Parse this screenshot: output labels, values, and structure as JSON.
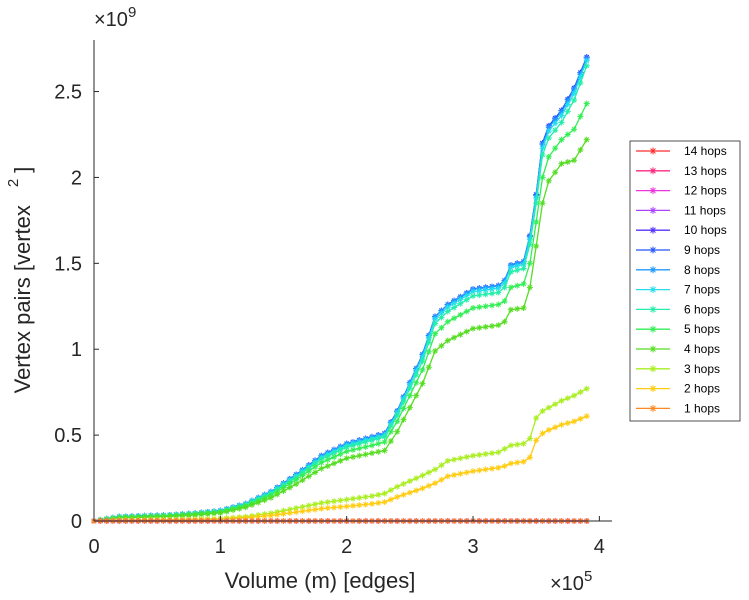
{
  "chart_data": {
    "type": "line",
    "title": "",
    "xlabel": "Volume (m) [edges]",
    "ylabel": "Vertex pairs [vertex",
    "ylabel_superscript": "2",
    "ylabel_suffix": "]",
    "xlim": [
      0,
      410000
    ],
    "ylim": [
      0,
      2800000000
    ],
    "x_ticks": [
      0,
      100000,
      200000,
      300000,
      400000
    ],
    "x_tick_labels": [
      "0",
      "1",
      "2",
      "3",
      "4"
    ],
    "y_ticks": [
      0,
      500000000,
      1000000000,
      1500000000,
      2000000000,
      2500000000
    ],
    "y_tick_labels": [
      "0",
      "0.5",
      "1",
      "1.5",
      "2",
      "2.5"
    ],
    "x_multiplier": "×10",
    "x_multiplier_exp": "5",
    "y_multiplier": "×10",
    "y_multiplier_exp": "9",
    "grid": false,
    "legend_position": "outside-right",
    "x": [
      0,
      20000,
      40000,
      60000,
      80000,
      100000,
      120000,
      140000,
      160000,
      180000,
      200000,
      220000,
      230000,
      240000,
      260000,
      270000,
      280000,
      300000,
      320000,
      325000,
      330000,
      340000,
      345000,
      350000,
      355000,
      360000,
      370000,
      380000,
      390000
    ],
    "series": [
      {
        "name": "14 hops",
        "color": "#ff2a2a",
        "values": [
          0,
          0,
          0,
          0,
          0,
          0,
          0,
          0,
          0,
          0,
          0,
          0,
          0,
          0,
          0,
          0,
          0,
          0,
          0,
          0,
          0,
          0,
          0,
          0,
          0,
          0,
          0,
          0,
          0
        ]
      },
      {
        "name": "13 hops",
        "color": "#ff2a7f",
        "values": [
          0,
          0,
          0,
          0,
          0,
          0,
          0,
          0,
          0,
          0,
          0,
          0,
          0,
          0,
          0,
          0,
          0,
          0,
          0,
          0,
          0,
          0,
          0,
          0,
          0,
          0,
          0,
          0,
          0
        ]
      },
      {
        "name": "12 hops",
        "color": "#ee33dd",
        "values": [
          0,
          0,
          0,
          0,
          0,
          0,
          0,
          0,
          0,
          0,
          0,
          0,
          0,
          0,
          0,
          0,
          0,
          0,
          0,
          0,
          0,
          0,
          0,
          0,
          0,
          0,
          0,
          0,
          0
        ]
      },
      {
        "name": "11 hops",
        "color": "#aa44ff",
        "values": [
          0,
          0,
          0,
          0,
          0,
          0,
          0,
          0,
          0,
          0,
          0,
          0,
          0,
          0,
          0,
          0,
          0,
          0,
          0,
          0,
          0,
          0,
          0,
          0,
          0,
          0,
          0,
          0,
          0
        ]
      },
      {
        "name": "10 hops",
        "color": "#5533ff",
        "values": [
          0,
          25000000,
          30000000,
          35000000,
          45000000,
          60000000,
          100000000,
          170000000,
          270000000,
          380000000,
          450000000,
          490000000,
          510000000,
          640000000,
          970000000,
          1190000000,
          1260000000,
          1350000000,
          1370000000,
          1400000000,
          1490000000,
          1510000000,
          1660000000,
          1900000000,
          2200000000,
          2300000000,
          2390000000,
          2520000000,
          2700000000
        ]
      },
      {
        "name": "9 hops",
        "color": "#2255ff",
        "values": [
          0,
          25000000,
          30000000,
          35000000,
          45000000,
          60000000,
          100000000,
          170000000,
          270000000,
          380000000,
          450000000,
          490000000,
          510000000,
          640000000,
          970000000,
          1190000000,
          1260000000,
          1350000000,
          1370000000,
          1400000000,
          1490000000,
          1510000000,
          1660000000,
          1900000000,
          2200000000,
          2300000000,
          2390000000,
          2520000000,
          2700000000
        ]
      },
      {
        "name": "8 hops",
        "color": "#2299ff",
        "values": [
          0,
          25000000,
          30000000,
          35000000,
          45000000,
          60000000,
          100000000,
          170000000,
          268000000,
          378000000,
          448000000,
          488000000,
          508000000,
          638000000,
          968000000,
          1188000000,
          1258000000,
          1348000000,
          1368000000,
          1398000000,
          1488000000,
          1508000000,
          1655000000,
          1895000000,
          2190000000,
          2290000000,
          2380000000,
          2510000000,
          2690000000
        ]
      },
      {
        "name": "7 hops",
        "color": "#22ddee",
        "values": [
          0,
          24000000,
          29000000,
          34000000,
          44000000,
          58000000,
          98000000,
          165000000,
          262000000,
          370000000,
          440000000,
          480000000,
          500000000,
          630000000,
          955000000,
          1175000000,
          1245000000,
          1335000000,
          1355000000,
          1385000000,
          1475000000,
          1495000000,
          1640000000,
          1880000000,
          2170000000,
          2270000000,
          2360000000,
          2490000000,
          2680000000
        ]
      },
      {
        "name": "6 hops",
        "color": "#22eeaa",
        "values": [
          0,
          23000000,
          28000000,
          33000000,
          43000000,
          56000000,
          95000000,
          160000000,
          255000000,
          360000000,
          430000000,
          470000000,
          490000000,
          615000000,
          930000000,
          1150000000,
          1220000000,
          1310000000,
          1330000000,
          1360000000,
          1450000000,
          1470000000,
          1610000000,
          1850000000,
          2130000000,
          2230000000,
          2320000000,
          2450000000,
          2650000000
        ]
      },
      {
        "name": "5 hops",
        "color": "#33ee55",
        "values": [
          0,
          20000000,
          25000000,
          30000000,
          40000000,
          52000000,
          88000000,
          150000000,
          240000000,
          340000000,
          405000000,
          440000000,
          460000000,
          580000000,
          880000000,
          1090000000,
          1160000000,
          1240000000,
          1260000000,
          1280000000,
          1360000000,
          1380000000,
          1500000000,
          1740000000,
          2000000000,
          2120000000,
          2220000000,
          2280000000,
          2430000000
        ]
      },
      {
        "name": "4 hops",
        "color": "#55dd22",
        "values": [
          0,
          18000000,
          22000000,
          27000000,
          35000000,
          47000000,
          80000000,
          135000000,
          215000000,
          305000000,
          365000000,
          395000000,
          410000000,
          520000000,
          800000000,
          990000000,
          1050000000,
          1120000000,
          1140000000,
          1160000000,
          1230000000,
          1240000000,
          1360000000,
          1600000000,
          1850000000,
          1980000000,
          2080000000,
          2100000000,
          2220000000
        ]
      },
      {
        "name": "3 hops",
        "color": "#aaee22",
        "values": [
          0,
          5000000,
          6000000,
          8000000,
          10000000,
          14000000,
          25000000,
          45000000,
          75000000,
          105000000,
          125000000,
          145000000,
          160000000,
          200000000,
          265000000,
          300000000,
          350000000,
          380000000,
          400000000,
          420000000,
          440000000,
          450000000,
          480000000,
          600000000,
          640000000,
          660000000,
          700000000,
          730000000,
          770000000
        ]
      },
      {
        "name": "2 hops",
        "color": "#ffcc11",
        "values": [
          0,
          3000000,
          4000000,
          5000000,
          7000000,
          10000000,
          18000000,
          32000000,
          52000000,
          72000000,
          85000000,
          100000000,
          110000000,
          140000000,
          190000000,
          220000000,
          260000000,
          290000000,
          310000000,
          320000000,
          335000000,
          345000000,
          370000000,
          470000000,
          510000000,
          530000000,
          560000000,
          580000000,
          610000000
        ]
      },
      {
        "name": "1 hops",
        "color": "#ff8822",
        "values": [
          0,
          0,
          0,
          0,
          0,
          0,
          0,
          0,
          0,
          0,
          0,
          0,
          0,
          0,
          0,
          0,
          0,
          0,
          0,
          0,
          0,
          0,
          0,
          0,
          0,
          0,
          0,
          0,
          0
        ]
      }
    ]
  }
}
